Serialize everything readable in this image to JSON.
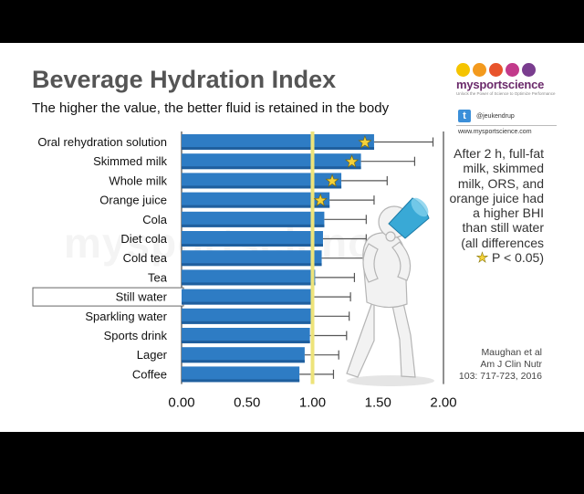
{
  "watermark": "mysportscience",
  "brand": {
    "name": "mysportscience",
    "tagline": "Unlock the Power of Science to Optimize Performance",
    "handle": "@jeukendrup",
    "website": "www.mysportscience.com",
    "dot_colors": [
      "#f5c400",
      "#f39a1e",
      "#e8542c",
      "#c23a8b",
      "#7a3d8f"
    ]
  },
  "chart_data": {
    "type": "bar",
    "orientation": "horizontal",
    "title": "Beverage Hydration Index",
    "subtitle": "The higher the value, the better fluid is retained in the body",
    "categories": [
      "Oral rehydration solution",
      "Skimmed milk",
      "Whole milk",
      "Orange juice",
      "Cola",
      "Diet cola",
      "Cold tea",
      "Tea",
      "Still water",
      "Sparkling water",
      "Sports drink",
      "Lager",
      "Coffee"
    ],
    "values": [
      1.47,
      1.37,
      1.22,
      1.13,
      1.09,
      1.08,
      1.07,
      1.02,
      1.0,
      0.99,
      0.98,
      0.94,
      0.9
    ],
    "error_upper": [
      1.92,
      1.78,
      1.57,
      1.47,
      1.41,
      1.41,
      1.4,
      1.32,
      1.29,
      1.28,
      1.26,
      1.2,
      1.16
    ],
    "significant": [
      true,
      true,
      true,
      true,
      false,
      false,
      false,
      false,
      false,
      false,
      false,
      false,
      false
    ],
    "highlighted_category": "Still water",
    "reference_line": 1.0,
    "xlim": [
      0,
      2
    ],
    "xticks": [
      "0.00",
      "0.50",
      "1.00",
      "1.50",
      "2.00"
    ],
    "annotation": {
      "text": "After 2 h, full-fat milk, skimmed milk, ORS, and orange juice had a higher BHI than still water (all differences",
      "pvalue": "P < 0.05)"
    },
    "citation": "Maughan et al\nAm J Clin Nutr\n103: 717-723, 2016",
    "colors": {
      "bar": "#2e7cc4",
      "bar_shade": "#1f5f9e",
      "reference": "#ede37a",
      "star": "#f5d23a",
      "error": "#555555"
    }
  }
}
